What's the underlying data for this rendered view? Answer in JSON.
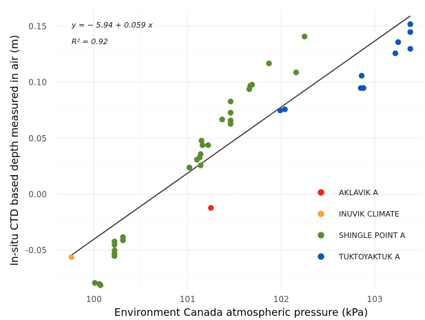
{
  "chart_data": {
    "type": "scatter",
    "xlabel": "Environment Canada atmospheric pressure (kPa)",
    "ylabel": "In-situ CTD based depth measured in air (m)",
    "xlim": [
      99.6,
      103.5
    ],
    "ylim": [
      -0.085,
      0.165
    ],
    "x_ticks": [
      {
        "value": 100,
        "label": "100"
      },
      {
        "value": 101,
        "label": "101"
      },
      {
        "value": 102,
        "label": "102"
      },
      {
        "value": 103,
        "label": "103"
      }
    ],
    "y_ticks": [
      {
        "value": -0.05,
        "label": "-0.05"
      },
      {
        "value": 0,
        "label": "0.00"
      },
      {
        "value": 0.05,
        "label": "0.05"
      },
      {
        "value": 0.1,
        "label": "0.10"
      },
      {
        "value": 0.15,
        "label": "0.15"
      }
    ],
    "grid": true,
    "legend_position": "bottom-right",
    "annotation": {
      "equation": "y = − 5.94 + 0.059 x",
      "r2": "R² = 0.92"
    },
    "fit_line": {
      "intercept": -5.94,
      "slope": 0.059,
      "x_range": [
        99.76,
        103.38
      ]
    },
    "series": [
      {
        "name": "AKLAVIK A",
        "color": "#e8291c",
        "points": [
          [
            101.25,
            -0.012
          ]
        ]
      },
      {
        "name": "INUVIK CLIMATE",
        "color": "#f5a540",
        "points": [
          [
            99.76,
            -0.056
          ]
        ]
      },
      {
        "name": "SHINGLE POINT A",
        "color": "#5b8c32",
        "points": [
          [
            100.01,
            -0.079
          ],
          [
            100.06,
            -0.08
          ],
          [
            100.07,
            -0.081
          ],
          [
            100.22,
            -0.042
          ],
          [
            100.22,
            -0.045
          ],
          [
            100.22,
            -0.05
          ],
          [
            100.22,
            -0.053
          ],
          [
            100.22,
            -0.055
          ],
          [
            100.31,
            -0.038
          ],
          [
            100.31,
            -0.041
          ],
          [
            101.02,
            0.024
          ],
          [
            101.1,
            0.031
          ],
          [
            101.13,
            0.033
          ],
          [
            101.14,
            0.026
          ],
          [
            101.14,
            0.036
          ],
          [
            101.15,
            0.048
          ],
          [
            101.16,
            0.044
          ],
          [
            101.22,
            0.044
          ],
          [
            101.37,
            0.067
          ],
          [
            101.46,
            0.063
          ],
          [
            101.46,
            0.066
          ],
          [
            101.46,
            0.073
          ],
          [
            101.46,
            0.083
          ],
          [
            101.66,
            0.094
          ],
          [
            101.67,
            0.097
          ],
          [
            101.69,
            0.098
          ],
          [
            101.87,
            0.117
          ],
          [
            102.16,
            0.109
          ],
          [
            102.25,
            0.141
          ]
        ]
      },
      {
        "name": "TUKTOYAKTUK A",
        "color": "#1455b8",
        "points": [
          [
            101.99,
            0.075
          ],
          [
            102.04,
            0.076
          ],
          [
            102.85,
            0.095
          ],
          [
            102.88,
            0.095
          ],
          [
            102.86,
            0.106
          ],
          [
            103.22,
            0.126
          ],
          [
            103.25,
            0.136
          ],
          [
            103.38,
            0.13
          ],
          [
            103.38,
            0.145
          ],
          [
            103.38,
            0.152
          ]
        ]
      }
    ]
  }
}
